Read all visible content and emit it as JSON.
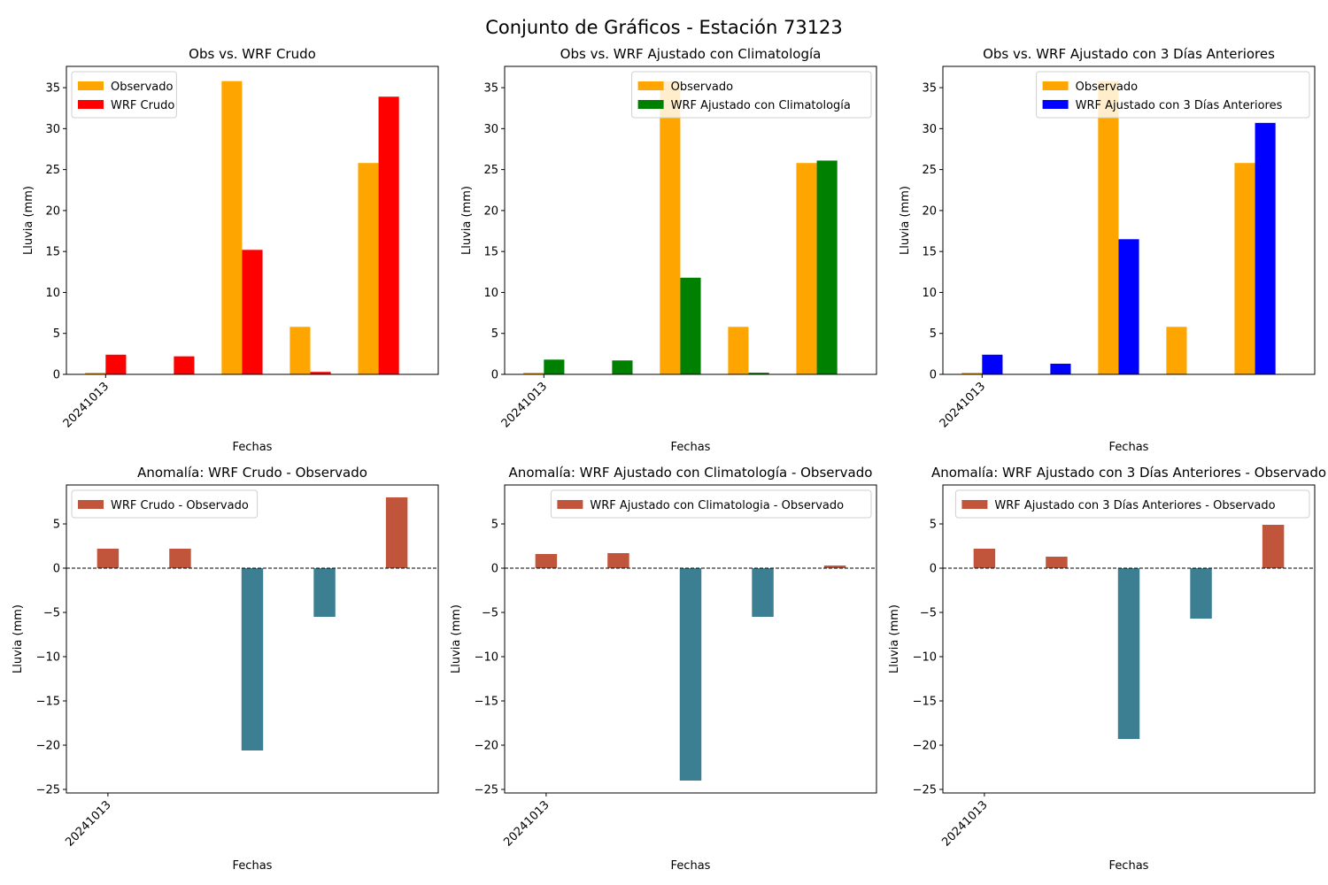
{
  "figure": {
    "title": "Conjunto de Gráficos - Estación 73123"
  },
  "chart_data": [
    {
      "type": "bar",
      "title": "Obs vs. WRF Crudo",
      "xlabel": "Fechas",
      "ylabel": "Lluvia (mm)",
      "ylim": [
        0,
        37.6
      ],
      "yticks": [
        0,
        5,
        10,
        15,
        20,
        25,
        30,
        35
      ],
      "xticks_labels": [
        "20241013"
      ],
      "legend": "top-left",
      "grid": false,
      "series": [
        {
          "name": "Observado",
          "color": "#ffa500",
          "values": [
            0.2,
            0.0,
            35.8,
            5.8,
            25.8
          ]
        },
        {
          "name": "WRF Crudo",
          "color": "#ff0000",
          "values": [
            2.4,
            2.2,
            15.2,
            0.3,
            33.9
          ]
        }
      ]
    },
    {
      "type": "bar",
      "title": "Obs vs. WRF Ajustado con Climatología",
      "xlabel": "Fechas",
      "ylabel": "Lluvia (mm)",
      "ylim": [
        0,
        37.6
      ],
      "yticks": [
        0,
        5,
        10,
        15,
        20,
        25,
        30,
        35
      ],
      "xticks_labels": [
        "20241013"
      ],
      "legend": "top-right",
      "grid": false,
      "series": [
        {
          "name": "Observado",
          "color": "#ffa500",
          "values": [
            0.2,
            0.0,
            35.8,
            5.8,
            25.8
          ]
        },
        {
          "name": "WRF Ajustado con Climatología",
          "color": "#008000",
          "values": [
            1.8,
            1.7,
            11.8,
            0.2,
            26.1
          ]
        }
      ]
    },
    {
      "type": "bar",
      "title": "Obs vs. WRF Ajustado con 3 Días Anteriores",
      "xlabel": "Fechas",
      "ylabel": "Lluvia (mm)",
      "ylim": [
        0,
        37.6
      ],
      "yticks": [
        0,
        5,
        10,
        15,
        20,
        25,
        30,
        35
      ],
      "xticks_labels": [
        "20241013"
      ],
      "legend": "top-right",
      "grid": false,
      "series": [
        {
          "name": "Observado",
          "color": "#ffa500",
          "values": [
            0.2,
            0.0,
            35.8,
            5.8,
            25.8
          ]
        },
        {
          "name": "WRF Ajustado con 3 Días Anteriores",
          "color": "#0000ff",
          "values": [
            2.4,
            1.3,
            16.5,
            0.0,
            30.7
          ]
        }
      ]
    },
    {
      "type": "bar",
      "title": "Anomalía: WRF Crudo - Observado",
      "xlabel": "Fechas",
      "ylabel": "Lluvia (mm)",
      "ylim": [
        -25.4,
        9.4
      ],
      "yticks": [
        -25,
        -20,
        -15,
        -10,
        -5,
        0,
        5
      ],
      "xticks_labels": [
        "20241013"
      ],
      "legend": "top-left",
      "grid": false,
      "zero_line": "dashed",
      "positive_color": "#c1553b",
      "negative_color": "#3d7f92",
      "series": [
        {
          "name": "WRF Crudo - Observado",
          "color": "#c1553b",
          "values": [
            2.2,
            2.2,
            -20.6,
            -5.5,
            8.0
          ]
        }
      ]
    },
    {
      "type": "bar",
      "title": "Anomalía: WRF Ajustado con Climatología - Observado",
      "xlabel": "Fechas",
      "ylabel": "Lluvia (mm)",
      "ylim": [
        -25.4,
        9.4
      ],
      "yticks": [
        -25,
        -20,
        -15,
        -10,
        -5,
        0,
        5
      ],
      "xticks_labels": [
        "20241013"
      ],
      "legend": "top-right",
      "grid": false,
      "zero_line": "dashed",
      "positive_color": "#c1553b",
      "negative_color": "#3d7f92",
      "series": [
        {
          "name": "WRF Ajustado con Climatologia - Observado",
          "color": "#c1553b",
          "values": [
            1.6,
            1.7,
            -24.0,
            -5.5,
            0.3
          ]
        }
      ]
    },
    {
      "type": "bar",
      "title": "Anomalía: WRF Ajustado con 3 Días Anteriores - Observado",
      "xlabel": "Fechas",
      "ylabel": "Lluvia (mm)",
      "ylim": [
        -25.4,
        9.4
      ],
      "yticks": [
        -25,
        -20,
        -15,
        -10,
        -5,
        0,
        5
      ],
      "xticks_labels": [
        "20241013"
      ],
      "legend": "top-right",
      "grid": false,
      "zero_line": "dashed",
      "positive_color": "#c1553b",
      "negative_color": "#3d7f92",
      "series": [
        {
          "name": "WRF Ajustado con 3 Días Anteriores - Observado",
          "color": "#c1553b",
          "values": [
            2.2,
            1.3,
            -19.3,
            -5.7,
            4.9
          ]
        }
      ]
    }
  ]
}
